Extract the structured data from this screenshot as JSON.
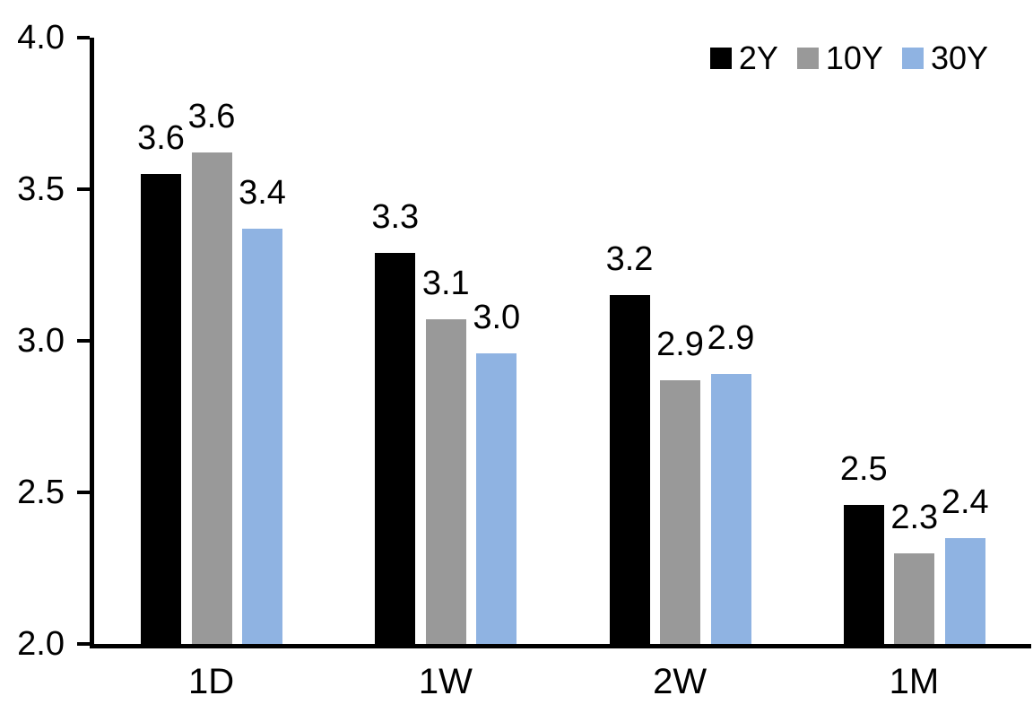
{
  "chart_data": {
    "type": "bar",
    "title": "",
    "categories": [
      "1D",
      "1W",
      "2W",
      "1M"
    ],
    "series": [
      {
        "name": "2Y",
        "color": "#000000",
        "values": [
          3.55,
          3.29,
          3.15,
          2.46
        ],
        "labels": [
          "3.6",
          "3.3",
          "3.2",
          "2.5"
        ]
      },
      {
        "name": "10Y",
        "color": "#999999",
        "values": [
          3.62,
          3.07,
          2.87,
          2.3
        ],
        "labels": [
          "3.6",
          "3.1",
          "2.9",
          "2.3"
        ]
      },
      {
        "name": "30Y",
        "color": "#8FB3E2",
        "values": [
          3.37,
          2.96,
          2.89,
          2.35
        ],
        "labels": [
          "3.4",
          "3.0",
          "2.9",
          "2.4"
        ]
      }
    ],
    "y_axis": {
      "min": 2.0,
      "max": 4.0,
      "tick_interval": 0.5,
      "tick_labels": [
        "2.0",
        "2.5",
        "3.0",
        "3.5",
        "4.0"
      ]
    },
    "x_axis": {
      "tick_labels": [
        "1D",
        "1W",
        "2W",
        "1M"
      ]
    },
    "legend": {
      "position": "top-right",
      "entries": [
        "2Y",
        "10Y",
        "30Y"
      ]
    },
    "grid": false,
    "axis_color": "#000000",
    "background": "#FFFFFF",
    "ylim": [
      2.0,
      4.0
    ]
  }
}
